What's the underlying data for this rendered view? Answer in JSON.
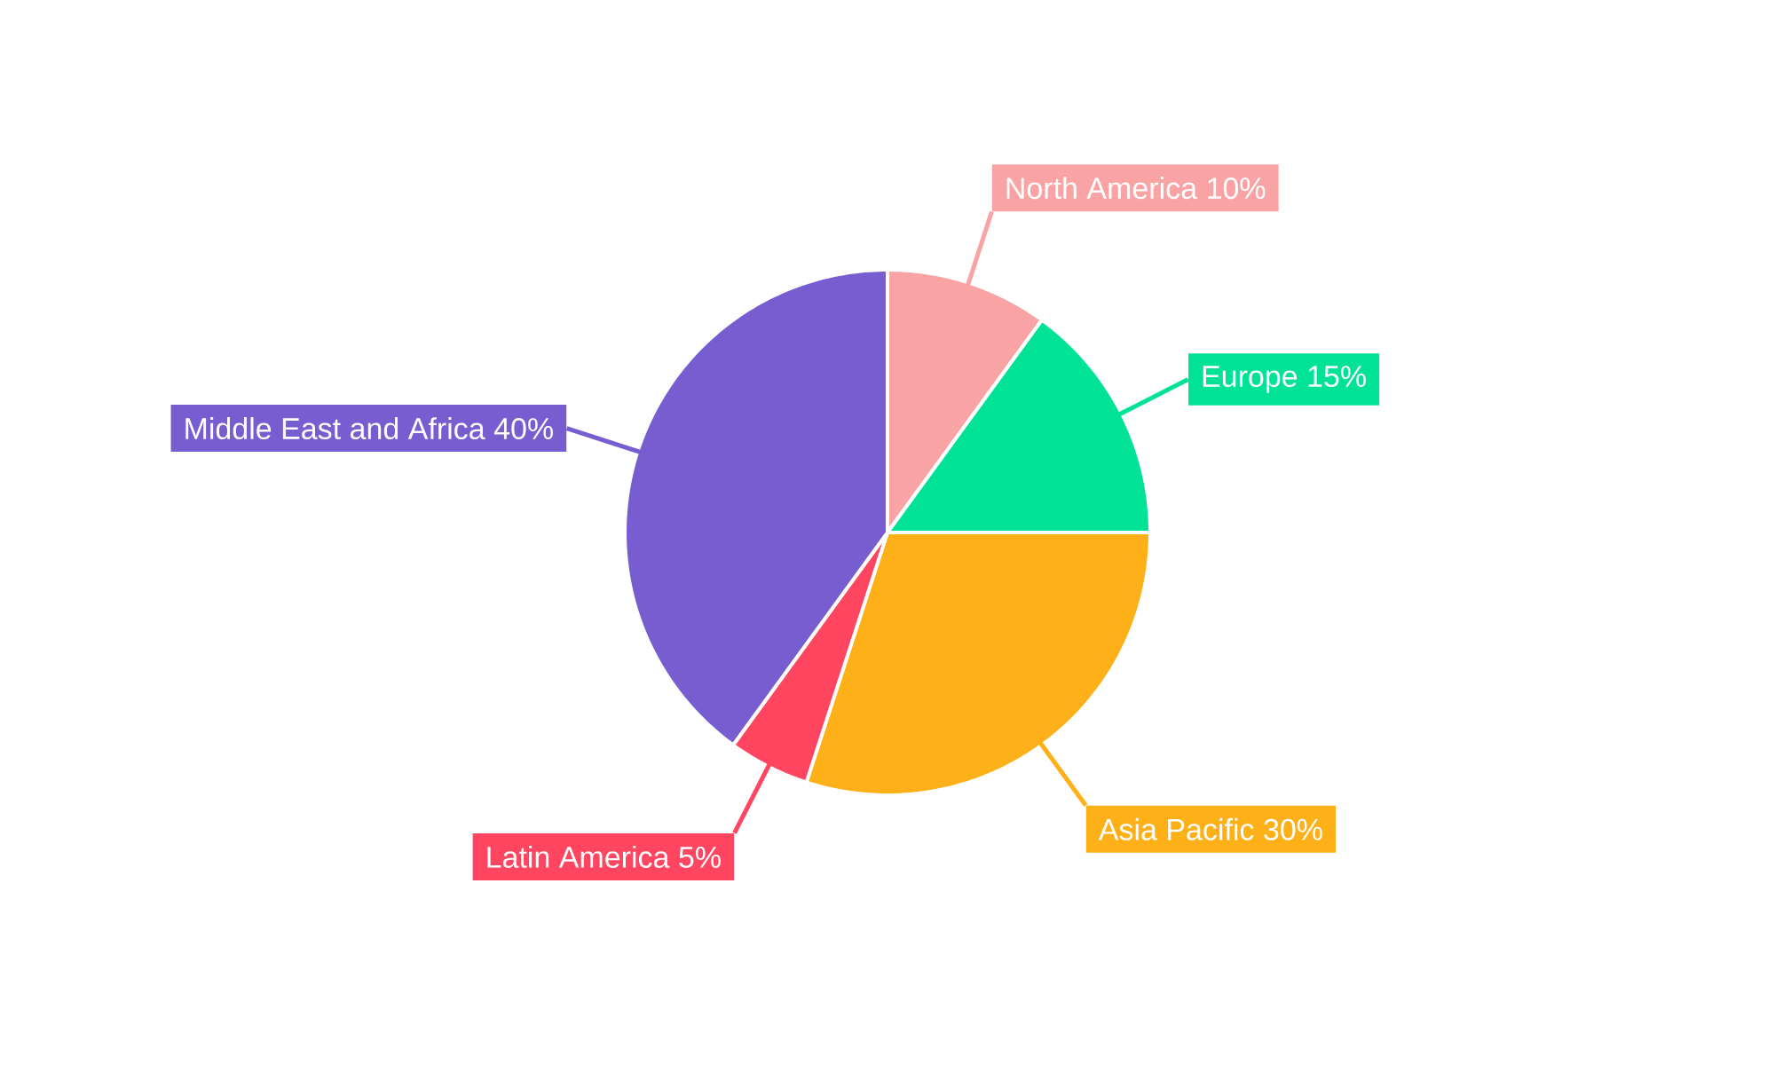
{
  "chart_data": {
    "type": "pie",
    "categories": [
      "North America",
      "Europe",
      "Asia Pacific",
      "Latin America",
      "Middle East and Africa"
    ],
    "values": [
      10,
      15,
      30,
      5,
      40
    ],
    "value_labels": [
      "10%",
      "15%",
      "30%",
      "5%",
      "40%"
    ],
    "colors": [
      "#f9a3a4",
      "#00e396",
      "#feb019",
      "#ff4560",
      "#775dd0"
    ]
  }
}
